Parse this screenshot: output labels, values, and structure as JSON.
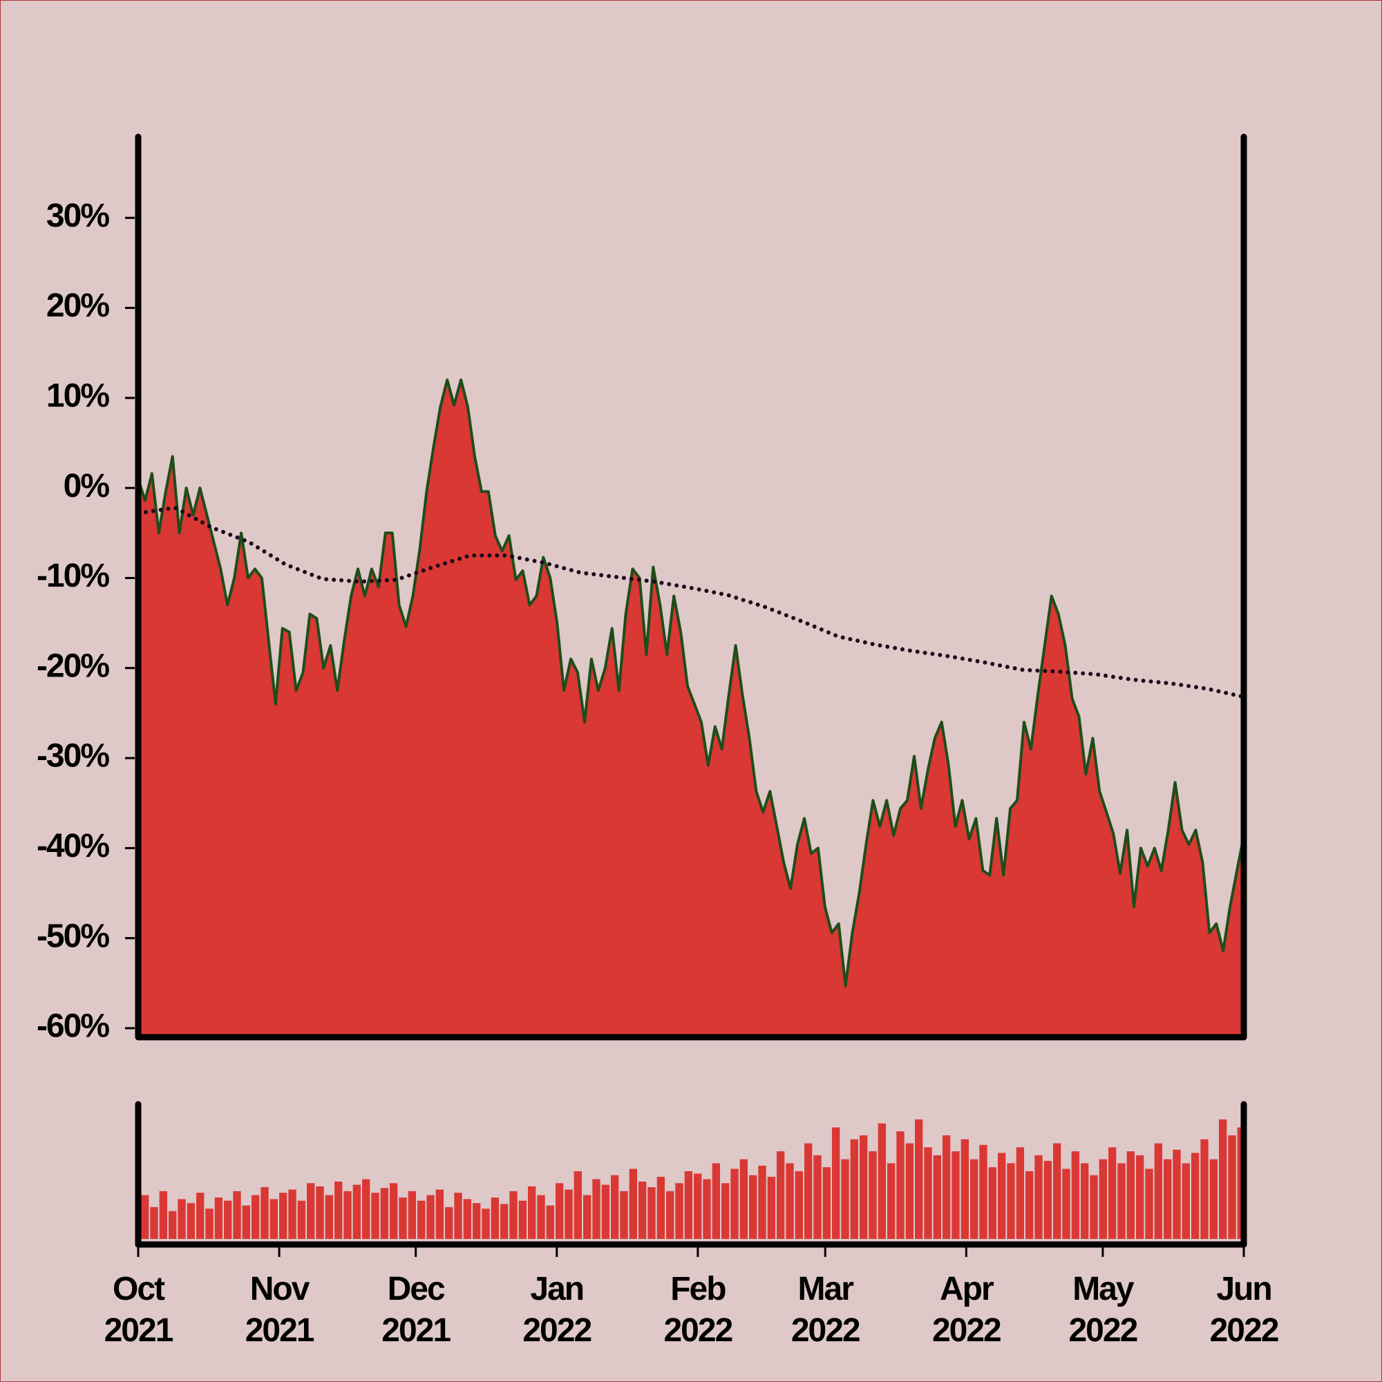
{
  "chart_data": {
    "type": "area",
    "xlim": [
      "2021-10",
      "2022-06"
    ],
    "xticks": [
      {
        "value": "2021-10",
        "label": "Oct\n2021"
      },
      {
        "value": "2021-11",
        "label": "Nov\n2021"
      },
      {
        "value": "2021-12",
        "label": "Dec\n2021"
      },
      {
        "value": "2022-01",
        "label": "Jan\n2022"
      },
      {
        "value": "2022-02",
        "label": "Feb\n2022"
      },
      {
        "value": "2022-03",
        "label": "Mar\n2022"
      },
      {
        "value": "2022-04",
        "label": "Apr\n2022"
      },
      {
        "value": "2022-05",
        "label": "May\n2022"
      },
      {
        "value": "2022-06",
        "label": "Jun\n2022"
      }
    ],
    "ylim": [
      -61,
      39
    ],
    "yticks": [
      {
        "value": 30,
        "label": "30%"
      },
      {
        "value": 20,
        "label": "20%"
      },
      {
        "value": 10,
        "label": "10%"
      },
      {
        "value": 0,
        "label": "0%"
      },
      {
        "value": -10,
        "label": "-10%"
      },
      {
        "value": -20,
        "label": "-20%"
      },
      {
        "value": -30,
        "label": "-30%"
      },
      {
        "value": -40,
        "label": "-40%"
      },
      {
        "value": -50,
        "label": "-50%"
      },
      {
        "value": -60,
        "label": "-60%"
      }
    ],
    "series": [
      {
        "type": "area",
        "color": "#d93834",
        "line_color": "#1e4d1a",
        "values": [
          1,
          -1.4,
          1.6,
          -5,
          -0.4,
          3.5,
          -5,
          0,
          -3,
          0,
          -3,
          -6,
          -9,
          -13,
          -10,
          -5,
          -10,
          -9,
          -10,
          -17,
          -24,
          -15.6,
          -16,
          -22.5,
          -20.5,
          -14,
          -14.5,
          -20,
          -17.5,
          -22.5,
          -17,
          -12,
          -9,
          -12,
          -9,
          -11,
          -5,
          -5,
          -13,
          -15.4,
          -12,
          -6.8,
          -0.4,
          4.5,
          9,
          12,
          9.2,
          12,
          9,
          3.5,
          -0.4,
          -0.4,
          -5.3,
          -7,
          -5.3,
          -10.2,
          -9.2,
          -13,
          -12,
          -7.7,
          -10,
          -15,
          -22.5,
          -19,
          -20.5,
          -26,
          -19,
          -22.5,
          -20,
          -15.6,
          -22.5,
          -14,
          -9,
          -10,
          -18.5,
          -8.8,
          -13,
          -18.5,
          -12,
          -16,
          -22,
          -24,
          -26,
          -30.8,
          -26.5,
          -29,
          -23,
          -17.5,
          -23,
          -27.8,
          -33.7,
          -36,
          -33.7,
          -37.6,
          -41.6,
          -44.5,
          -39.6,
          -36.7,
          -40.6,
          -40,
          -46.5,
          -49.4,
          -48.4,
          -55.3,
          -49.4,
          -45,
          -39.6,
          -34.7,
          -37.6,
          -34.7,
          -38.6,
          -35.6,
          -34.7,
          -29.8,
          -35.6,
          -31.3,
          -27.8,
          -26,
          -30.8,
          -37.6,
          -34.7,
          -39,
          -36.7,
          -42.5,
          -43,
          -36.7,
          -43,
          -35.6,
          -34.7,
          -26,
          -29,
          -23,
          -17.5,
          -12,
          -14,
          -17.5,
          -23.4,
          -25.4,
          -31.8,
          -27.8,
          -33.7,
          -36,
          -38.4,
          -42.8,
          -38,
          -46.5,
          -40,
          -42,
          -40,
          -42.5,
          -38,
          -32.7,
          -38,
          -39.6,
          -38,
          -41.6,
          -49.4,
          -48.4,
          -51.4,
          -46.5,
          -42.5,
          -38.6
        ]
      },
      {
        "type": "line",
        "style": "dotted",
        "color": "#1a0a1a",
        "values": [
          -2.8,
          -2.2,
          -4.4,
          -6.0,
          -8.5,
          -10.1,
          -10.4,
          -10.2,
          -8.8,
          -7.5,
          -7.5,
          -8.3,
          -9.4,
          -9.9,
          -10.4,
          -11.1,
          -11.9,
          -13.2,
          -14.8,
          -16.5,
          -17.4,
          -18.1,
          -18.7,
          -19.4,
          -20.2,
          -20.4,
          -20.7,
          -21.3,
          -21.7,
          -22.3,
          -23.2
        ]
      }
    ],
    "volume": {
      "type": "bar",
      "color": "#d93834",
      "values": [
        55,
        40,
        60,
        35,
        50,
        45,
        58,
        38,
        52,
        48,
        60,
        42,
        55,
        65,
        50,
        58,
        62,
        48,
        70,
        66,
        55,
        72,
        60,
        68,
        75,
        58,
        64,
        70,
        52,
        60,
        48,
        55,
        62,
        40,
        58,
        50,
        45,
        38,
        52,
        44,
        60,
        48,
        66,
        55,
        42,
        70,
        62,
        85,
        55,
        75,
        68,
        80,
        60,
        88,
        72,
        65,
        78,
        60,
        70,
        85,
        82,
        75,
        95,
        70,
        88,
        100,
        80,
        92,
        78,
        110,
        95,
        85,
        120,
        105,
        90,
        140,
        100,
        125,
        130,
        110,
        145,
        95,
        135,
        120,
        150,
        115,
        105,
        130,
        110,
        125,
        100,
        118,
        90,
        108,
        95,
        115,
        85,
        105,
        98,
        120,
        88,
        110,
        95,
        80,
        100,
        115,
        95,
        110,
        105,
        88,
        120,
        100,
        112,
        95,
        108,
        125,
        100,
        150,
        130,
        140
      ]
    }
  }
}
